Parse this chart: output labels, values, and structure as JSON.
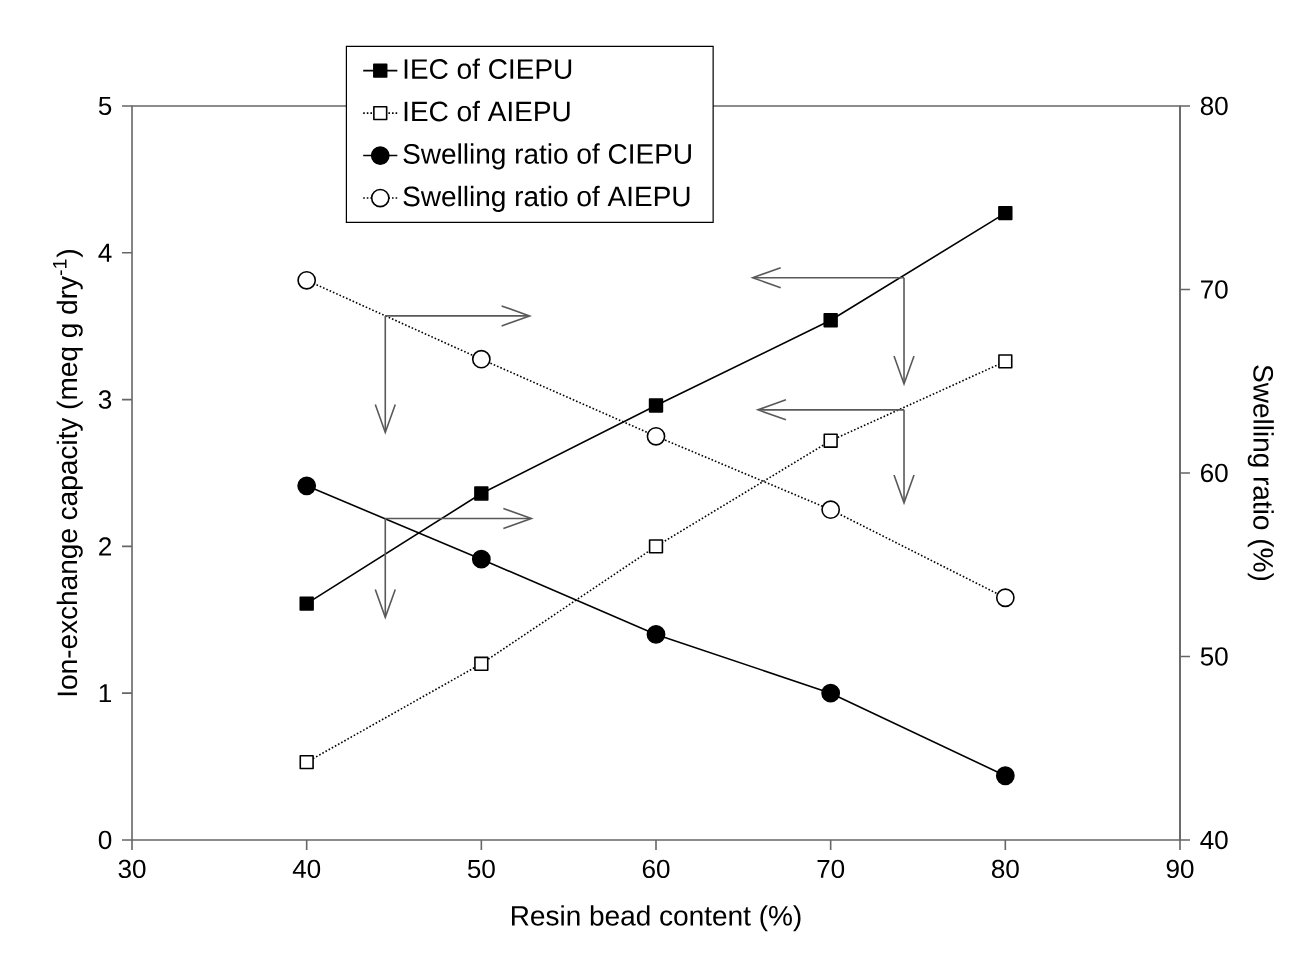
{
  "chart_data": {
    "type": "line",
    "xlabel": "Resin bead content (%)",
    "ylabel": "Ion-exchange capacity (meq g dry$^{-1}$)",
    "y2label": "Swelling ratio (%)",
    "x": [
      40,
      50,
      60,
      70,
      80
    ],
    "xlim": [
      30,
      90
    ],
    "xticks": [
      30,
      40,
      50,
      60,
      70,
      80,
      90
    ],
    "ylim": [
      0,
      5
    ],
    "yticks": [
      0,
      1,
      2,
      3,
      4,
      5
    ],
    "y2lim": [
      40,
      80
    ],
    "y2ticks": [
      40,
      50,
      60,
      70,
      80
    ],
    "grid": false,
    "legend": "top",
    "series": [
      {
        "name": "IEC of CIEPU",
        "color": "#000000",
        "marker": "square",
        "line_style": "solid",
        "values": [
          1.61,
          2.36,
          2.96,
          3.54,
          4.27
        ]
      },
      {
        "name": "IEC of AIEPU",
        "color": "#000000",
        "marker": "square",
        "line_style": "dotted",
        "values": [
          0.53,
          1.2,
          2.0,
          2.72,
          3.26
        ]
      },
      {
        "name": "Swelling ratio of CIEPU",
        "color": "#000000",
        "marker": "circle",
        "line_style": "solid",
        "axis": "y2",
        "values": [
          59.3,
          55.3,
          51.2,
          48.0,
          43.5
        ]
      },
      {
        "name": "Swelling ratio of AIEPU",
        "color": "#000000",
        "marker": "circle",
        "line_style": "dotted",
        "axis": "y2",
        "values": [
          70.5,
          66.2,
          62.0,
          58.0,
          53.2
        ]
      }
    ]
  }
}
